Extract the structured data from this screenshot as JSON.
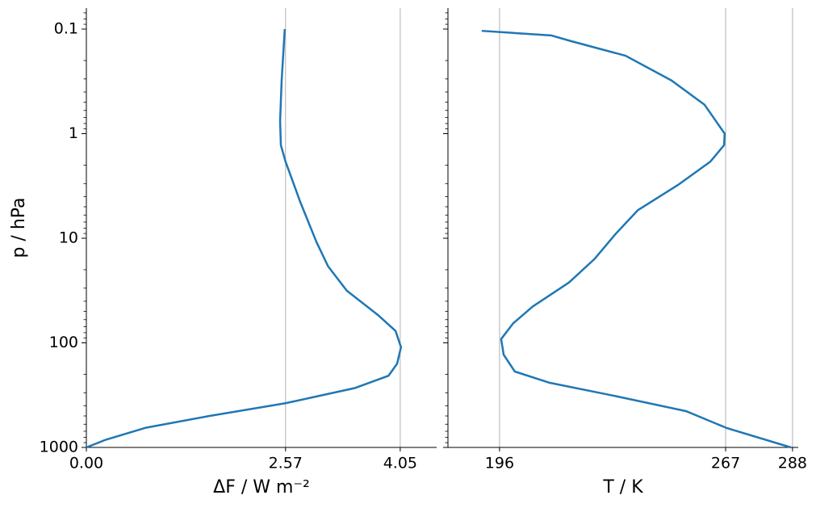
{
  "chart_data": [
    {
      "type": "line",
      "xlabel": "ΔF / W m⁻²",
      "ylabel": "p / hPa",
      "color": "#1f77b4",
      "grid": true,
      "yscale": "log",
      "xlim": [
        0,
        4.52
      ],
      "xticks": [
        {
          "value": 0,
          "label": "0.00"
        },
        2.57,
        4.05
      ],
      "ylim": [
        1000,
        0.063
      ],
      "yticks": [
        0.1,
        1,
        10,
        100,
        1000
      ],
      "y": [
        0.1,
        0.31,
        0.76,
        1.29,
        1.85,
        4.5,
        10.9,
        18.6,
        31.7,
        54,
        77,
        110,
        158,
        206,
        270,
        378,
        500,
        650,
        850,
        1000
      ],
      "values": [
        2.56,
        2.52,
        2.5,
        2.51,
        2.57,
        2.76,
        2.97,
        3.12,
        3.36,
        3.76,
        3.99,
        4.06,
        4.01,
        3.9,
        3.47,
        2.57,
        1.59,
        0.76,
        0.24,
        0
      ]
    },
    {
      "type": "line",
      "xlabel": "T / K",
      "color": "#1f77b4",
      "grid": true,
      "yscale": "log",
      "xlim": [
        179.8,
        289.8
      ],
      "xticks": [
        196,
        267,
        288
      ],
      "ylim": [
        1000,
        0.063
      ],
      "yticks": [
        0.1,
        1,
        10,
        100,
        1000
      ],
      "y": [
        0.104,
        0.115,
        0.13,
        0.18,
        0.31,
        0.53,
        1.0,
        1.29,
        1.85,
        3.1,
        5.4,
        9.2,
        15.7,
        26.5,
        45,
        65,
        92,
        130,
        188,
        240,
        320,
        450,
        650,
        1000
      ],
      "values": [
        190.4,
        212.2,
        218.3,
        235.6,
        250.0,
        260.4,
        266.7,
        266.5,
        262.2,
        252.0,
        239.4,
        232.3,
        225.9,
        217.8,
        206.4,
        200.3,
        196.5,
        197.3,
        200.8,
        211.5,
        231.8,
        254.6,
        267.2,
        287.5
      ]
    }
  ]
}
